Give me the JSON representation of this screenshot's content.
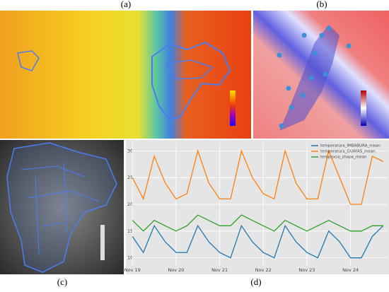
{
  "panels": [
    {
      "label": "(a)"
    },
    {
      "label": "(b)"
    },
    {
      "label": "(c)"
    },
    {
      "label": "(d)"
    }
  ],
  "chart_data": {
    "type": "line",
    "x": [
      19,
      19.25,
      19.5,
      19.75,
      20,
      20.25,
      20.5,
      20.75,
      21,
      21.25,
      21.5,
      21.75,
      22,
      22.25,
      22.5,
      22.75,
      23,
      23.25,
      23.5,
      23.75,
      24,
      24.25,
      24.5,
      24.75
    ],
    "series": [
      {
        "name": "temperatura_IMBABURA_mean",
        "color": "#1f77b4",
        "values": [
          14,
          11,
          16,
          13,
          11,
          11,
          16,
          13,
          11,
          10,
          16,
          13,
          11,
          10,
          16,
          13,
          11,
          10,
          15,
          13,
          10,
          10,
          14,
          16
        ]
      },
      {
        "name": "temperatura_GUAYAS_mean",
        "color": "#ff7f0e",
        "values": [
          25,
          21,
          29,
          24,
          21,
          22,
          30,
          24,
          21,
          21,
          30,
          25,
          22,
          21,
          30,
          24,
          21,
          21,
          30,
          25,
          20,
          20,
          29,
          28
        ]
      },
      {
        "name": "temprocio_shape_mean",
        "color": "#2ca02c",
        "values": [
          17,
          15,
          17,
          16,
          15,
          16,
          18,
          17,
          16,
          16,
          18,
          17,
          16,
          15,
          17,
          16,
          15,
          16,
          17,
          16,
          15,
          15,
          16,
          16
        ]
      }
    ],
    "xlim": [
      18.85,
      24.85
    ],
    "xticks": [
      {
        "value": 19,
        "label": "Nov 19"
      },
      {
        "value": 20,
        "label": "Nov 20"
      },
      {
        "value": 21,
        "label": "Nov 21"
      },
      {
        "value": 22,
        "label": "Nov 22"
      },
      {
        "value": 23,
        "label": "Nov 23"
      },
      {
        "value": 24,
        "label": "Nov 24"
      }
    ],
    "ylim": [
      8.5,
      31.5
    ],
    "yticks": [
      10,
      15,
      20,
      25,
      30
    ],
    "grid": true,
    "legend": "top-right"
  }
}
